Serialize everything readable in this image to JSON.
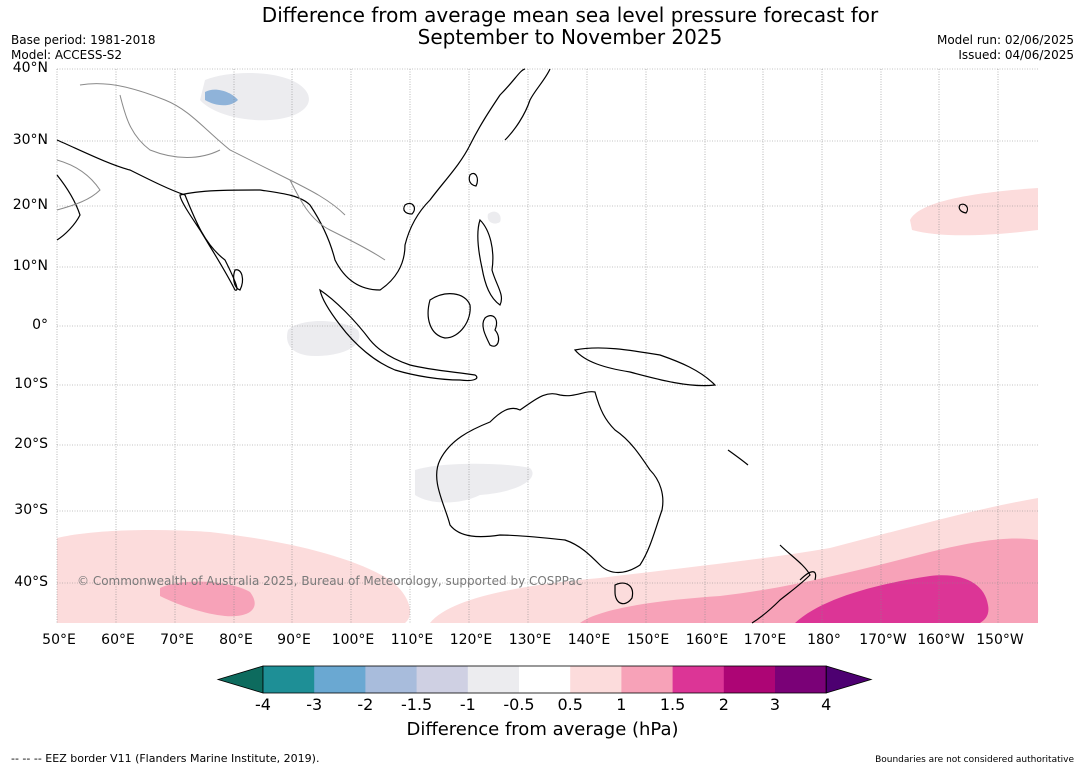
{
  "title_line1": "Difference from average mean sea level pressure forecast for",
  "title_line2": "September to November 2025",
  "base_period": "Base period: 1981-2018",
  "model": "Model: ACCESS-S2",
  "model_run": "Model run: 02/06/2025",
  "issued": "Issued: 04/06/2025",
  "copyright": "© Commonwealth of Australia 2025, Bureau of Meteorology, supported by COSPPac",
  "lat_labels": [
    "40°N",
    "30°N",
    "20°N",
    "10°N",
    "0°",
    "10°S",
    "20°S",
    "30°S",
    "40°S"
  ],
  "lon_labels": [
    "50°E",
    "60°E",
    "70°E",
    "80°E",
    "90°E",
    "100°E",
    "110°E",
    "120°E",
    "130°E",
    "140°E",
    "150°E",
    "160°E",
    "170°E",
    "180°",
    "170°W",
    "160°W",
    "150°W"
  ],
  "colorbar": {
    "label": "Difference from average (hPa)",
    "ticks": [
      "-4",
      "-3",
      "-2",
      "-1.5",
      "-1",
      "-0.5",
      "0.5",
      "1",
      "1.5",
      "2",
      "3",
      "4"
    ],
    "colors": [
      "#0d6b5e",
      "#1e8f96",
      "#6aa8d2",
      "#a8bcdc",
      "#cfd0e3",
      "#ececef",
      "#ffffff",
      "#fcdcdc",
      "#f7a2b8",
      "#dc3596",
      "#ad0575",
      "#7a0177",
      "#4d0071"
    ]
  },
  "footer_left": "--  --  -- EEZ border V11 (Flanders Marine Institute, 2019).",
  "footer_right": "Boundaries are not considered authoritative"
}
